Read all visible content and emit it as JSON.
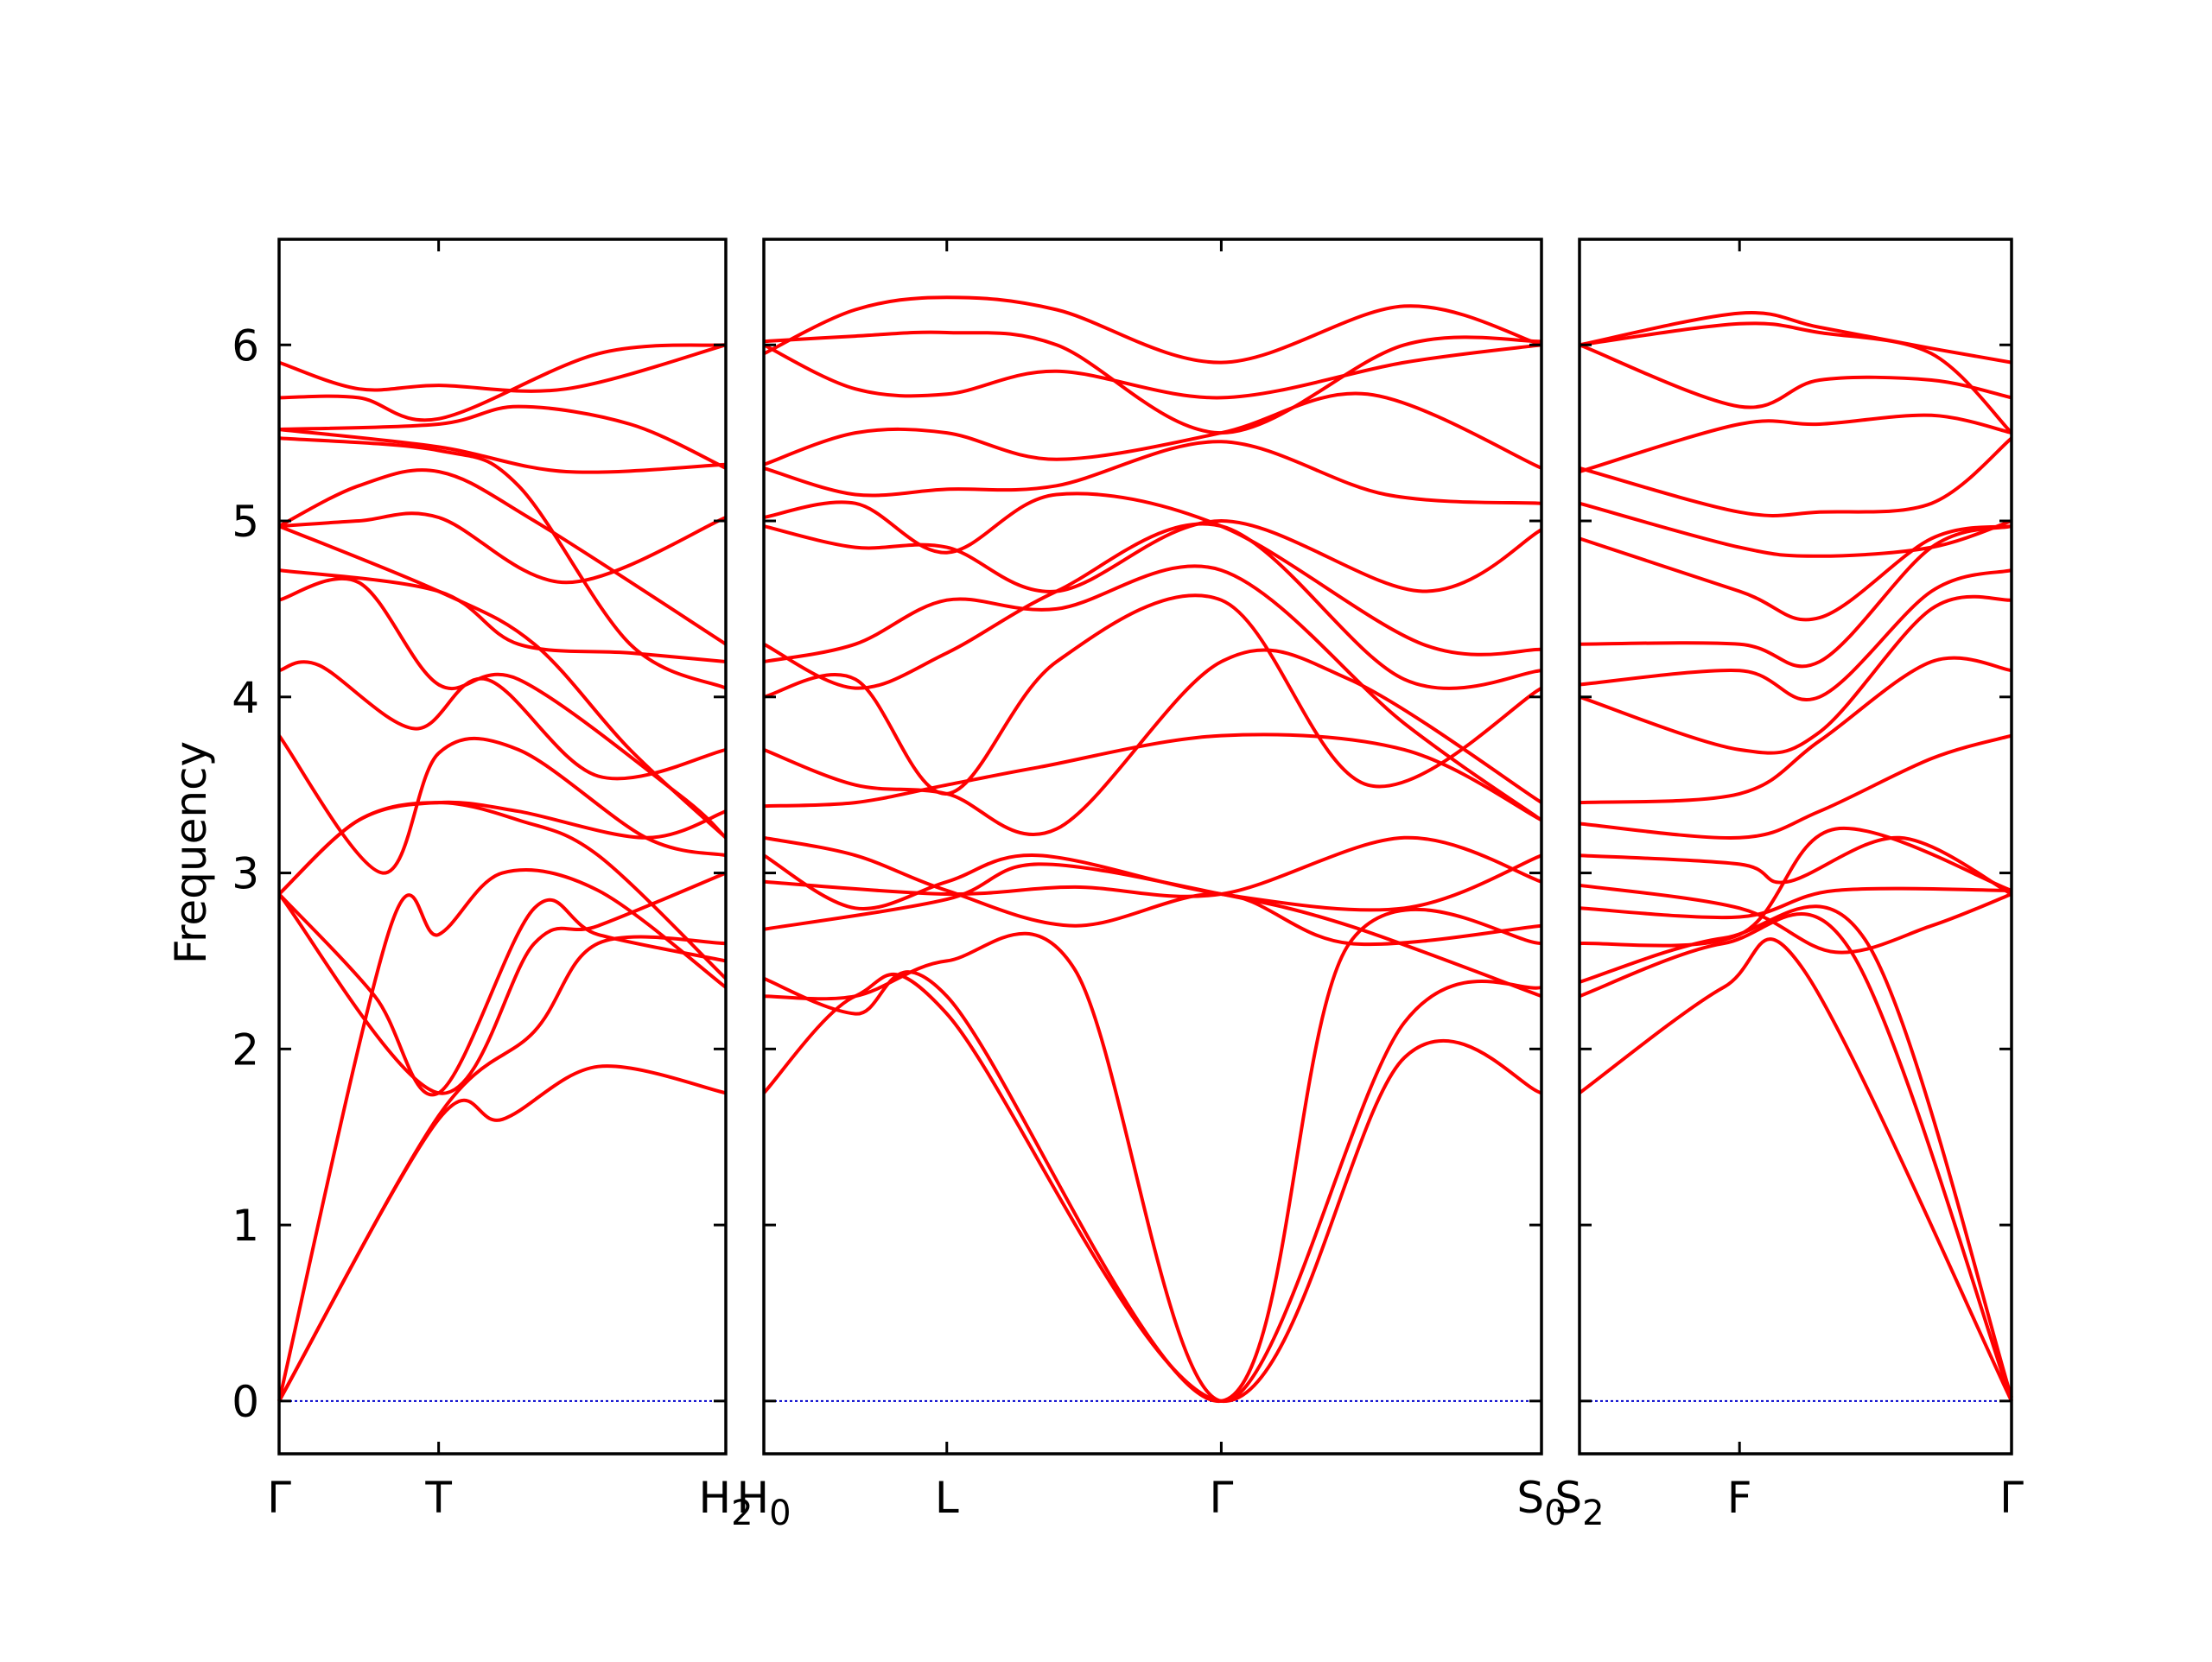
{
  "chart_data": {
    "type": "line",
    "ylabel": "Frequency",
    "ylim": [
      -0.3,
      6.6
    ],
    "yticks": [
      0,
      1,
      2,
      3,
      4,
      5,
      6
    ],
    "line_color": "#ff0000",
    "zero_line_color": "#0000cc",
    "grid": false,
    "panels": [
      {
        "xticks": [
          {
            "x": 0,
            "label": "Γ"
          },
          {
            "x": 1,
            "label": "T"
          },
          {
            "x": 2.8,
            "label": "H",
            "sub": "2"
          }
        ],
        "xlim": [
          0,
          2.8
        ],
        "series": [
          {
            "x": [
              0,
              1,
              1.4,
              2.0,
              2.8
            ],
            "y": [
              0,
              1.6,
              1.6,
              1.9,
              1.75
            ]
          },
          {
            "x": [
              0,
              0.7,
              1,
              1.4,
              2.0,
              2.8
            ],
            "y": [
              0,
              2.7,
              2.65,
              3.0,
              2.9,
              2.35
            ]
          },
          {
            "x": [
              0,
              1,
              1.6,
              2.0,
              2.8
            ],
            "y": [
              0,
              1.62,
              2.1,
              2.6,
              2.6
            ]
          },
          {
            "x": [
              0,
              0.6,
              1,
              1.6,
              2.0,
              2.8
            ],
            "y": [
              2.88,
              2.3,
              1.75,
              2.8,
              2.65,
              2.5
            ]
          },
          {
            "x": [
              0,
              1,
              1.6,
              2.0,
              2.8
            ],
            "y": [
              2.88,
              1.75,
              2.6,
              2.7,
              3.0
            ]
          },
          {
            "x": [
              0,
              0.5,
              1,
              1.5,
              2.0,
              2.8
            ],
            "y": [
              2.88,
              3.3,
              3.4,
              3.3,
              3.1,
              2.4
            ]
          },
          {
            "x": [
              0,
              0.65,
              1,
              1.5,
              2.3,
              2.8
            ],
            "y": [
              3.78,
              3.0,
              3.68,
              3.7,
              3.2,
              3.1
            ]
          },
          {
            "x": [
              0,
              0.5,
              1,
              1.5,
              2.3,
              2.8
            ],
            "y": [
              2.88,
              3.3,
              3.4,
              3.35,
              3.2,
              3.35
            ]
          },
          {
            "x": [
              0,
              0.25,
              0.85,
              1.3,
              2.0,
              2.8
            ],
            "y": [
              4.15,
              4.18,
              3.82,
              4.1,
              3.55,
              3.7
            ]
          },
          {
            "x": [
              0,
              0.5,
              1,
              1.5,
              2.5,
              2.8
            ],
            "y": [
              4.55,
              4.65,
              4.07,
              4.1,
              3.45,
              3.2
            ]
          },
          {
            "x": [
              0,
              1,
              1.5,
              2.2,
              2.8
            ],
            "y": [
              4.72,
              4.6,
              4.3,
              4.25,
              4.2
            ]
          },
          {
            "x": [
              0,
              1,
              1.6,
              2.2,
              2.8
            ],
            "y": [
              4.97,
              4.6,
              4.3,
              3.7,
              3.2
            ]
          },
          {
            "x": [
              0,
              0.5,
              1,
              1.8,
              2.8
            ],
            "y": [
              4.97,
              5.0,
              5.02,
              4.65,
              5.02
            ]
          },
          {
            "x": [
              0,
              0.5,
              1,
              1.6,
              2.8
            ],
            "y": [
              4.97,
              5.2,
              5.28,
              5.0,
              4.3
            ]
          },
          {
            "x": [
              0,
              1,
              1.5,
              2.2,
              2.8
            ],
            "y": [
              5.47,
              5.4,
              5.2,
              4.3,
              4.05
            ]
          },
          {
            "x": [
              0,
              1,
              1.5,
              2.2,
              2.8
            ],
            "y": [
              5.52,
              5.55,
              5.65,
              5.55,
              5.3
            ]
          },
          {
            "x": [
              0,
              0.5,
              1,
              2.0,
              2.8
            ],
            "y": [
              5.7,
              5.7,
              5.58,
              5.95,
              6.0
            ]
          },
          {
            "x": [
              0,
              0.5,
              1,
              1.8,
              2.8
            ],
            "y": [
              5.9,
              5.75,
              5.77,
              5.75,
              6.0
            ]
          },
          {
            "x": [
              0,
              1,
              1.8,
              2.8
            ],
            "y": [
              5.52,
              5.42,
              5.28,
              5.32
            ]
          }
        ]
      },
      {
        "xticks": [
          {
            "x": 0,
            "label": "H",
            "sub": "0"
          },
          {
            "x": 1,
            "label": "L"
          },
          {
            "x": 2.5,
            "label": "Γ"
          },
          {
            "x": 4.25,
            "label": "S",
            "sub": "0"
          }
        ],
        "xlim": [
          0,
          4.25
        ],
        "series": [
          {
            "x": [
              0,
              0.5,
              1,
              2.5,
              3.5,
              4.25
            ],
            "y": [
              1.75,
              2.3,
              2.2,
              0,
              1.95,
              1.75
            ]
          },
          {
            "x": [
              0,
              0.5,
              1,
              1.7,
              2.5,
              3.5,
              4.25
            ],
            "y": [
              2.3,
              2.3,
              2.5,
              2.45,
              0,
              2.15,
              2.35
            ]
          },
          {
            "x": [
              0,
              0.5,
              1,
              2.5,
              3.2,
              4.25
            ],
            "y": [
              2.4,
              2.2,
              2.3,
              0,
              2.6,
              2.6
            ]
          },
          {
            "x": [
              0,
              1,
              1.5,
              2.5,
              3.2,
              4.25
            ],
            "y": [
              2.68,
              2.85,
              3.05,
              2.88,
              2.7,
              2.3
            ]
          },
          {
            "x": [
              0,
              1,
              1.7,
              2.5,
              3.5,
              4.25
            ],
            "y": [
              2.95,
              2.88,
              2.92,
              2.88,
              3.2,
              2.95
            ]
          },
          {
            "x": [
              0,
              0.5,
              1,
              1.5,
              2.5,
              3.5,
              4.25
            ],
            "y": [
              3.1,
              2.8,
              2.95,
              3.1,
              2.88,
              2.8,
              3.1
            ]
          },
          {
            "x": [
              0,
              0.5,
              1,
              1.7,
              2.5,
              3.2,
              4.25
            ],
            "y": [
              3.2,
              3.1,
              2.9,
              2.7,
              2.88,
              2.6,
              2.7
            ]
          },
          {
            "x": [
              0,
              0.5,
              1,
              1.5,
              2.5,
              3.5,
              4.25
            ],
            "y": [
              3.38,
              3.4,
              3.5,
              3.6,
              3.78,
              3.7,
              3.3
            ]
          },
          {
            "x": [
              0,
              0.5,
              1,
              1.6,
              2.5,
              3.2,
              4.25
            ],
            "y": [
              3.7,
              3.5,
              3.45,
              3.25,
              4.2,
              4.1,
              3.4
            ]
          },
          {
            "x": [
              0,
              0.5,
              1,
              1.6,
              2.5,
              3.3,
              4.25
            ],
            "y": [
              4.0,
              4.1,
              3.45,
              4.2,
              4.55,
              3.5,
              4.05
            ]
          },
          {
            "x": [
              0,
              0.5,
              1,
              1.6,
              2.5,
              3.5,
              4.25
            ],
            "y": [
              4.2,
              4.3,
              4.55,
              4.5,
              4.72,
              3.85,
              3.3
            ]
          },
          {
            "x": [
              0,
              0.5,
              1,
              1.6,
              2.5,
              3.5,
              4.25
            ],
            "y": [
              4.3,
              4.05,
              4.25,
              4.6,
              4.97,
              4.1,
              4.15
            ]
          },
          {
            "x": [
              0,
              0.5,
              1,
              1.6,
              2.5,
              3.6,
              4.25
            ],
            "y": [
              4.97,
              4.85,
              4.85,
              4.6,
              5.0,
              4.6,
              4.95
            ]
          },
          {
            "x": [
              0,
              0.5,
              1,
              1.6,
              2.5,
              3.6,
              4.25
            ],
            "y": [
              5.02,
              5.1,
              4.82,
              5.15,
              4.97,
              4.3,
              4.27
            ]
          },
          {
            "x": [
              0,
              0.5,
              1,
              1.6,
              2.5,
              3.4,
              4.25
            ],
            "y": [
              5.3,
              5.15,
              5.18,
              5.2,
              5.45,
              5.15,
              5.1
            ]
          },
          {
            "x": [
              0,
              0.5,
              1,
              1.6,
              2.5,
              3.3,
              4.25
            ],
            "y": [
              5.32,
              5.5,
              5.5,
              5.35,
              5.5,
              5.72,
              5.3
            ]
          },
          {
            "x": [
              0,
              0.5,
              1,
              1.6,
              2.5,
              3.5,
              4.25
            ],
            "y": [
              6.0,
              5.75,
              5.72,
              5.85,
              5.7,
              5.9,
              6.0
            ]
          },
          {
            "x": [
              0,
              0.5,
              1,
              1.6,
              2.5,
              3.5,
              4.25
            ],
            "y": [
              6.02,
              6.05,
              6.07,
              6.0,
              5.5,
              6.0,
              6.02
            ]
          },
          {
            "x": [
              0,
              0.5,
              1,
              1.6,
              2.5,
              3.5,
              4.25
            ],
            "y": [
              5.95,
              6.2,
              6.27,
              6.2,
              5.9,
              6.22,
              6.0
            ]
          }
        ]
      },
      {
        "xticks": [
          {
            "x": 0,
            "label": "S",
            "sub": "2"
          },
          {
            "x": 1,
            "label": "F"
          },
          {
            "x": 2.7,
            "label": "Γ"
          }
        ],
        "xlim": [
          0,
          2.7
        ],
        "series": [
          {
            "x": [
              0,
              0.9,
              1.4,
              2.7
            ],
            "y": [
              1.75,
              2.35,
              2.45,
              0
            ]
          },
          {
            "x": [
              0,
              0.9,
              1.7,
              2.7
            ],
            "y": [
              2.3,
              2.6,
              2.55,
              0
            ]
          },
          {
            "x": [
              0,
              0.9,
              1.8,
              2.7
            ],
            "y": [
              2.38,
              2.63,
              2.6,
              0.02
            ]
          },
          {
            "x": [
              0,
              1,
              1.6,
              2.7
            ],
            "y": [
              2.6,
              2.65,
              3.25,
              2.9
            ]
          },
          {
            "x": [
              0,
              1,
              1.6,
              2.7
            ],
            "y": [
              2.8,
              2.75,
              2.9,
              2.9
            ]
          },
          {
            "x": [
              0,
              1,
              1.6,
              2.2,
              2.7
            ],
            "y": [
              2.93,
              2.8,
              2.55,
              2.7,
              2.88
            ]
          },
          {
            "x": [
              0,
              1,
              1.3,
              2.0,
              2.7
            ],
            "y": [
              3.1,
              3.05,
              2.95,
              3.2,
              2.88
            ]
          },
          {
            "x": [
              0,
              1,
              1.5,
              2.2,
              2.7
            ],
            "y": [
              3.28,
              3.2,
              3.35,
              3.65,
              3.78
            ]
          },
          {
            "x": [
              0,
              1,
              1.5,
              2.2,
              2.7
            ],
            "y": [
              3.4,
              3.45,
              3.75,
              4.2,
              4.15
            ]
          },
          {
            "x": [
              0,
              1,
              1.5,
              2.2,
              2.7
            ],
            "y": [
              4.0,
              3.7,
              3.8,
              4.5,
              4.55
            ]
          },
          {
            "x": [
              0,
              1,
              1.5,
              2.2,
              2.7
            ],
            "y": [
              4.07,
              4.15,
              4.0,
              4.6,
              4.72
            ]
          },
          {
            "x": [
              0,
              1,
              1.5,
              2.2,
              2.7
            ],
            "y": [
              4.3,
              4.3,
              4.2,
              4.85,
              4.97
            ]
          },
          {
            "x": [
              0,
              1,
              1.5,
              2.2,
              2.7
            ],
            "y": [
              4.9,
              4.6,
              4.45,
              4.9,
              4.97
            ]
          },
          {
            "x": [
              0,
              1,
              1.5,
              2.2,
              2.7
            ],
            "y": [
              5.1,
              4.85,
              4.8,
              4.85,
              5.0
            ]
          },
          {
            "x": [
              0,
              1,
              1.5,
              2.2,
              2.7
            ],
            "y": [
              5.3,
              5.05,
              5.05,
              5.1,
              5.47
            ]
          },
          {
            "x": [
              0,
              1,
              1.5,
              2.2,
              2.7
            ],
            "y": [
              5.28,
              5.55,
              5.55,
              5.6,
              5.5
            ]
          },
          {
            "x": [
              0,
              1,
              1.5,
              2.2,
              2.7
            ],
            "y": [
              6.0,
              5.65,
              5.8,
              5.8,
              5.7
            ]
          },
          {
            "x": [
              0,
              1,
              1.5,
              2.2,
              2.7
            ],
            "y": [
              6.0,
              6.12,
              6.07,
              5.95,
              5.5
            ]
          },
          {
            "x": [
              0,
              1,
              1.5,
              2.2,
              2.7
            ],
            "y": [
              6.0,
              6.18,
              6.1,
              5.98,
              5.9
            ]
          }
        ]
      }
    ]
  }
}
